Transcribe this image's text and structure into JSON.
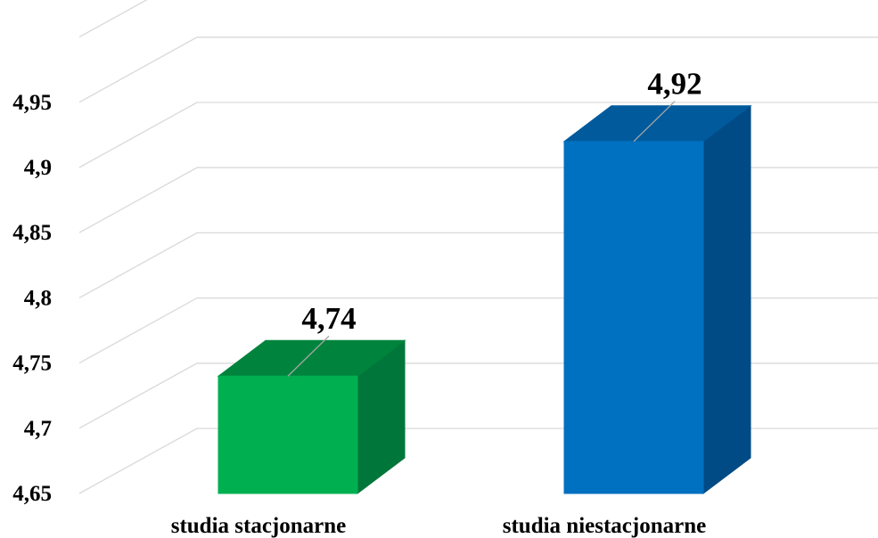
{
  "chart_data": {
    "type": "bar",
    "style": "3d-column",
    "title": "",
    "xlabel": "",
    "ylabel": "",
    "categories": [
      "studia stacjonarne",
      "studia niestacjonarne"
    ],
    "values": [
      4.74,
      4.92
    ],
    "value_labels": [
      "4,74",
      "4,92"
    ],
    "ylim": [
      4.65,
      4.95
    ],
    "yticks": [
      "4,65",
      "4,7",
      "4,75",
      "4,8",
      "4,85",
      "4,9",
      "4,95"
    ],
    "grid": true,
    "legend": "none",
    "colors": {
      "studia stacjonarne": {
        "front": "#00b050",
        "top": "#00843d",
        "side": "#00763a"
      },
      "studia niestacjonarne": {
        "front": "#0070c0",
        "top": "#005a9c",
        "side": "#004a85"
      }
    }
  }
}
